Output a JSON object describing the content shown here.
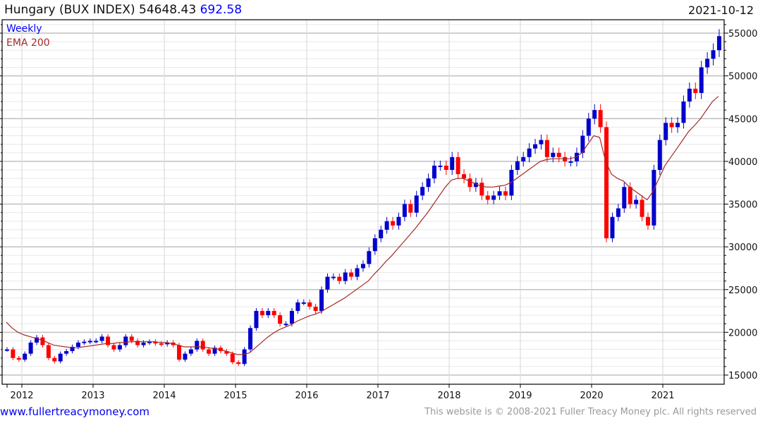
{
  "header": {
    "name": "Hungary (BUX INDEX)",
    "last": "54648.43",
    "change": "692.58",
    "date": "2021-10-12"
  },
  "footer": {
    "site_link": "www.fullertreacymoney.com",
    "copyright": "This website is © 2008-2021 Fuller Treacy Money plc. All rights reserved"
  },
  "colors": {
    "up": "#0000cc",
    "down": "#ff0000",
    "ema": "#a52a2a",
    "legend_weekly": "#0000ff"
  },
  "chart_data": {
    "type": "line",
    "title": "Hungary (BUX INDEX)",
    "legend": [
      "Weekly",
      "EMA 200"
    ],
    "legend_placement": "top-left",
    "xlabel": "",
    "ylabel": "",
    "x_ticks": [
      "2012",
      "2013",
      "2014",
      "2015",
      "2016",
      "2017",
      "2018",
      "2019",
      "2020",
      "2021"
    ],
    "y_ticks": [
      "15000",
      "20000",
      "25000",
      "30000",
      "35000",
      "40000",
      "45000",
      "50000",
      "55000"
    ],
    "ylim": [
      14000,
      56500
    ],
    "xlim": [
      2011.75,
      2021.85
    ],
    "grid": true,
    "start": "2011-10",
    "frequency": "monthly (approx.)",
    "series": [
      {
        "name": "Weekly",
        "values": [
          18000,
          17000,
          16800,
          17500,
          18800,
          19400,
          18500,
          17000,
          16600,
          17500,
          17800,
          18300,
          18800,
          18900,
          19000,
          19000,
          19500,
          18500,
          18000,
          18500,
          19500,
          19000,
          18500,
          18800,
          18900,
          18700,
          18600,
          18800,
          18500,
          16800,
          17500,
          18000,
          19000,
          18000,
          17500,
          18200,
          17800,
          17500,
          16500,
          16300,
          18000,
          20500,
          22500,
          22000,
          22500,
          22000,
          21000,
          21000,
          22500,
          23500,
          23500,
          23000,
          22500,
          25000,
          26500,
          26500,
          26000,
          27000,
          26500,
          27500,
          28000,
          29500,
          31000,
          32000,
          33000,
          32500,
          33500,
          35000,
          34000,
          36000,
          37000,
          38000,
          39500,
          39500,
          39000,
          40500,
          38500,
          38000,
          37000,
          37500,
          36000,
          35500,
          36000,
          36500,
          36000,
          39000,
          40000,
          40500,
          41500,
          42000,
          42500,
          40500,
          41000,
          40500,
          40000,
          40000,
          41000,
          43000,
          45000,
          46000,
          44000,
          31000,
          33500,
          34500,
          37000,
          35000,
          35500,
          33500,
          32500,
          39000,
          42500,
          44500,
          44000,
          44500,
          47000,
          48500,
          48000,
          51000,
          52000,
          53000,
          54648
        ]
      },
      {
        "name": "EMA 200",
        "values": [
          21200,
          20500,
          20000,
          19700,
          19500,
          19300,
          19100,
          18800,
          18500,
          18400,
          18300,
          18200,
          18200,
          18300,
          18400,
          18500,
          18600,
          18700,
          18700,
          18800,
          18800,
          18900,
          18900,
          18900,
          18900,
          18900,
          18800,
          18800,
          18700,
          18500,
          18300,
          18300,
          18300,
          18300,
          18200,
          18100,
          18000,
          17800,
          17600,
          17400,
          17400,
          17600,
          18200,
          18800,
          19400,
          19900,
          20300,
          20600,
          20900,
          21300,
          21600,
          21900,
          22100,
          22400,
          22800,
          23200,
          23600,
          24000,
          24500,
          25000,
          25500,
          26000,
          26800,
          27500,
          28300,
          29000,
          29800,
          30600,
          31400,
          32200,
          33100,
          34000,
          35000,
          36000,
          37000,
          37800,
          38000,
          38000,
          37700,
          37400,
          37100,
          37000,
          37000,
          37100,
          37200,
          37500,
          38000,
          38500,
          39000,
          39500,
          40000,
          40200,
          40300,
          40300,
          40300,
          40300,
          40500,
          41000,
          42000,
          43000,
          42800,
          40000,
          38500,
          38000,
          37700,
          37000,
          36500,
          36000,
          35500,
          36500,
          38000,
          39500,
          40500,
          41500,
          42500,
          43500,
          44200,
          45000,
          46000,
          47000,
          47600
        ]
      }
    ]
  }
}
